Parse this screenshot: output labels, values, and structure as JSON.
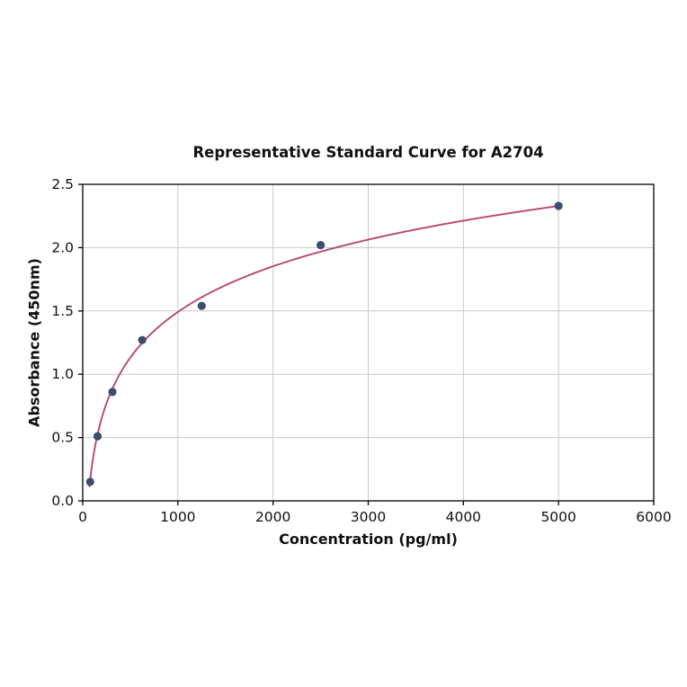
{
  "page": {
    "background": "#ffffff"
  },
  "chart_data": {
    "type": "scatter",
    "title": "Representative Standard Curve for A2704",
    "xlabel": "Concentration (pg/ml)",
    "ylabel": "Absorbance (450nm)",
    "xlim": [
      0,
      6000
    ],
    "ylim": [
      0,
      2.5
    ],
    "x_ticks": [
      0,
      1000,
      2000,
      3000,
      4000,
      5000,
      6000
    ],
    "y_ticks": [
      0,
      0.5,
      1.0,
      1.5,
      2.0,
      2.5
    ],
    "grid": true,
    "legend_position": "none",
    "points": {
      "x": [
        78,
        156,
        312,
        625,
        1250,
        2500,
        5000
      ],
      "y": [
        0.15,
        0.51,
        0.86,
        1.27,
        1.54,
        2.02,
        2.33
      ]
    },
    "fit_curve": {
      "type": "log",
      "a": 0.52,
      "b": -2.1,
      "x_start": 70,
      "x_end": 5000
    },
    "colors": {
      "curve": "#b8486c",
      "points": "#3c4d6e",
      "grid": "#c9c9c9",
      "axis": "#000000",
      "tick_text": "#111111"
    }
  }
}
